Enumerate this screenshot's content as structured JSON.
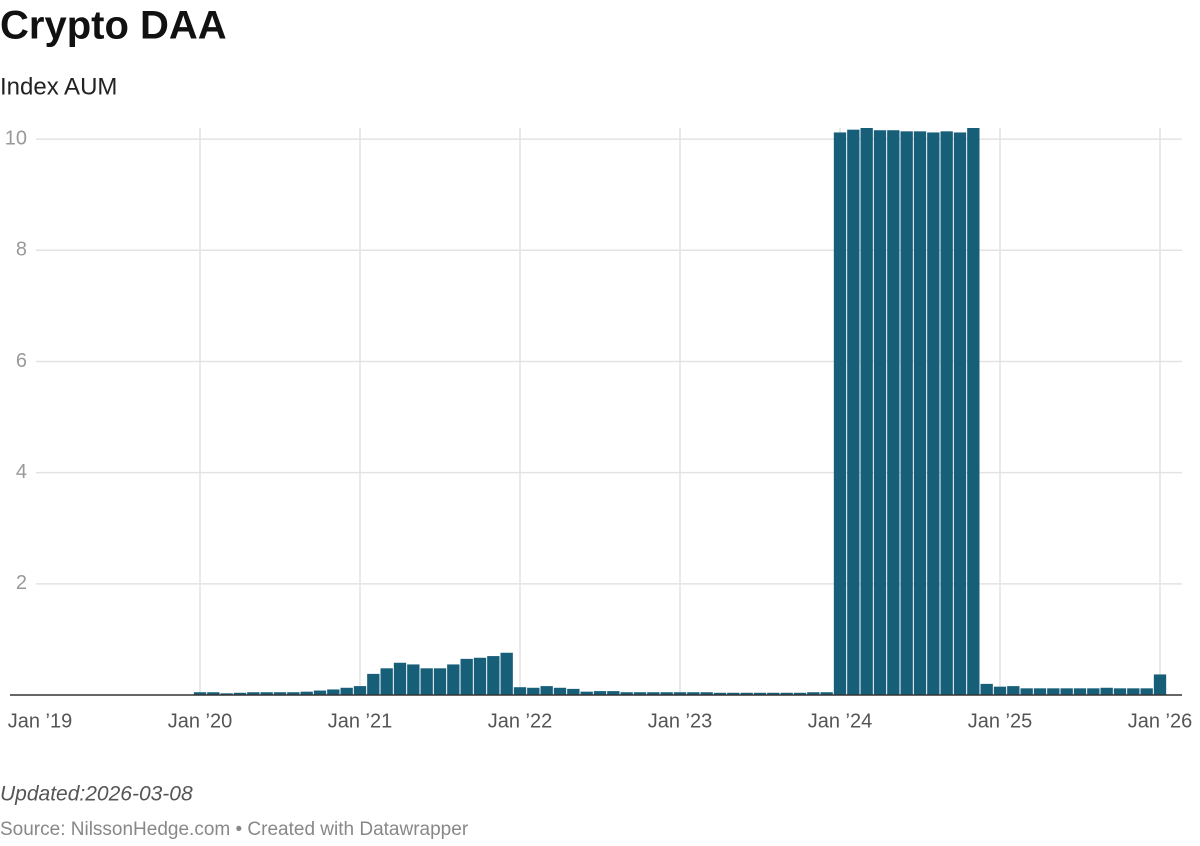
{
  "chart_data": {
    "type": "bar",
    "title": "Crypto DAA",
    "subtitle": "Index AUM",
    "categories": [
      "Jan ’19",
      null,
      null,
      null,
      null,
      null,
      null,
      null,
      null,
      null,
      null,
      null,
      "Jan ’20",
      null,
      null,
      null,
      null,
      null,
      null,
      null,
      null,
      null,
      null,
      null,
      "Jan ’21",
      null,
      null,
      null,
      null,
      null,
      null,
      null,
      null,
      null,
      null,
      null,
      "Jan ’22",
      null,
      null,
      null,
      null,
      null,
      null,
      null,
      null,
      null,
      null,
      null,
      "Jan ’23",
      null,
      null,
      null,
      null,
      null,
      null,
      null,
      null,
      null,
      null,
      null,
      "Jan ’24",
      null,
      null,
      null,
      null,
      null,
      null,
      null,
      null,
      null,
      null,
      null,
      "Jan ’25",
      null,
      null,
      null,
      null,
      null,
      null,
      null,
      null,
      null,
      null,
      null,
      "Jan ’26"
    ],
    "values": [
      0,
      0,
      0,
      0,
      0,
      0,
      0,
      0,
      0,
      0,
      0,
      0,
      0.05,
      0.05,
      0.03,
      0.04,
      0.05,
      0.05,
      0.05,
      0.05,
      0.06,
      0.08,
      0.1,
      0.13,
      0.16,
      0.38,
      0.48,
      0.58,
      0.55,
      0.48,
      0.48,
      0.55,
      0.65,
      0.67,
      0.7,
      0.76,
      0.14,
      0.13,
      0.16,
      0.13,
      0.11,
      0.06,
      0.07,
      0.07,
      0.05,
      0.05,
      0.05,
      0.05,
      0.05,
      0.05,
      0.05,
      0.04,
      0.04,
      0.04,
      0.04,
      0.04,
      0.04,
      0.04,
      0.05,
      0.05,
      10.12,
      10.17,
      10.2,
      10.16,
      10.16,
      10.14,
      10.14,
      10.12,
      10.14,
      10.12,
      10.2,
      0.2,
      0.15,
      0.16,
      0.12,
      0.12,
      0.12,
      0.12,
      0.12,
      0.12,
      0.13,
      0.12,
      0.12,
      0.12,
      0.37
    ],
    "color": "#175f78",
    "ylim": [
      0,
      10.2
    ],
    "yticks": [
      2,
      4,
      6,
      8,
      10
    ],
    "grid": true,
    "notes": "Updated:2026-03-08",
    "source": "Source: NilssonHedge.com • Created with Datawrapper"
  }
}
